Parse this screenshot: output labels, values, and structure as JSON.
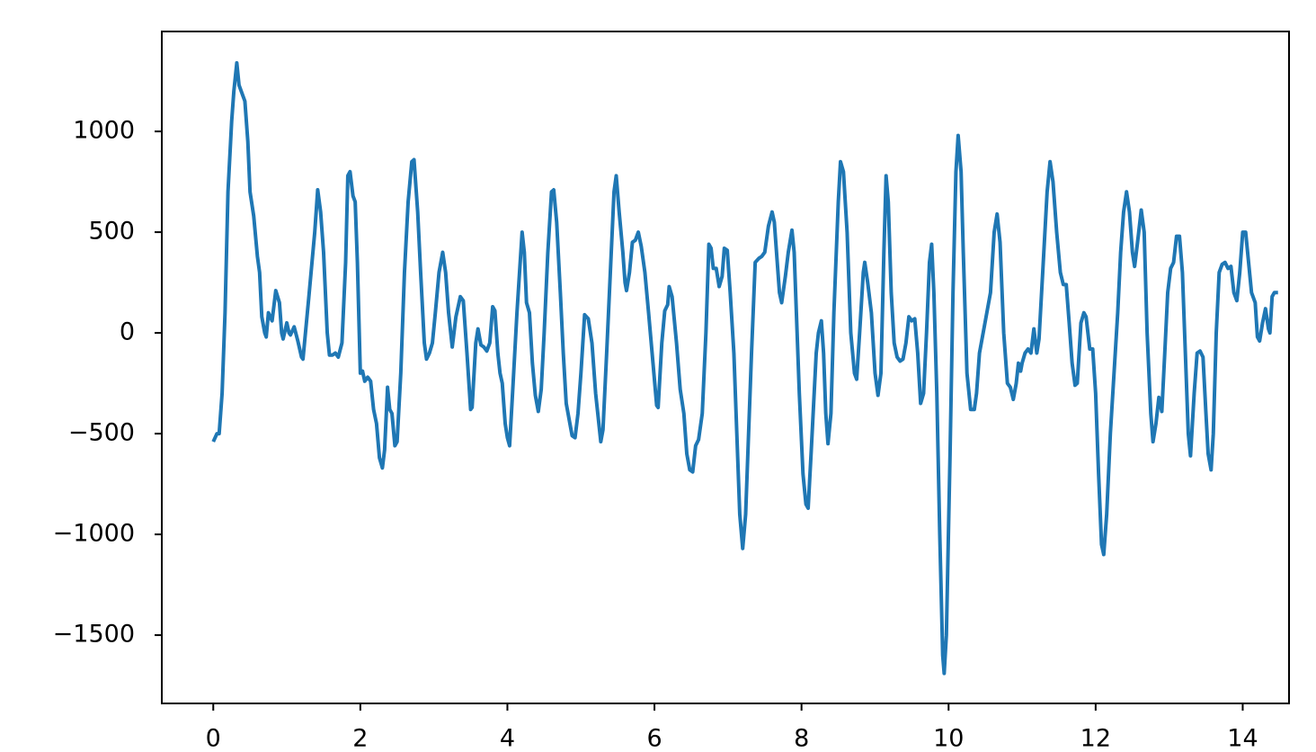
{
  "chart_data": {
    "type": "line",
    "x": [
      0,
      0.05,
      0.08,
      0.12,
      0.16,
      0.2,
      0.25,
      0.28,
      0.32,
      0.35,
      0.4,
      0.43,
      0.47,
      0.5,
      0.55,
      0.6,
      0.63,
      0.66,
      0.7,
      0.72,
      0.75,
      0.8,
      0.85,
      0.9,
      0.93,
      0.95,
      1.0,
      1.03,
      1.05,
      1.1,
      1.15,
      1.2,
      1.22,
      1.3,
      1.38,
      1.42,
      1.46,
      1.5,
      1.55,
      1.58,
      1.62,
      1.66,
      1.7,
      1.75,
      1.8,
      1.83,
      1.86,
      1.9,
      1.93,
      1.96,
      2.0,
      2.03,
      2.06,
      2.1,
      2.14,
      2.18,
      2.22,
      2.26,
      2.3,
      2.33,
      2.37,
      2.4,
      2.43,
      2.47,
      2.5,
      2.55,
      2.6,
      2.65,
      2.7,
      2.73,
      2.78,
      2.82,
      2.87,
      2.9,
      2.94,
      2.98,
      3.02,
      3.07,
      3.12,
      3.16,
      3.2,
      3.25,
      3.3,
      3.36,
      3.4,
      3.45,
      3.5,
      3.52,
      3.57,
      3.6,
      3.64,
      3.68,
      3.72,
      3.76,
      3.8,
      3.83,
      3.87,
      3.9,
      3.93,
      3.97,
      4.0,
      4.03,
      4.07,
      4.13,
      4.2,
      4.23,
      4.26,
      4.3,
      4.34,
      4.38,
      4.42,
      4.46,
      4.5,
      4.55,
      4.6,
      4.63,
      4.67,
      4.72,
      4.76,
      4.8,
      4.85,
      4.88,
      4.92,
      4.96,
      5.0,
      5.05,
      5.1,
      5.15,
      5.2,
      5.27,
      5.3,
      5.35,
      5.4,
      5.45,
      5.48,
      5.52,
      5.57,
      5.6,
      5.62,
      5.66,
      5.7,
      5.74,
      5.78,
      5.82,
      5.87,
      5.92,
      5.98,
      6.03,
      6.05,
      6.1,
      6.14,
      6.18,
      6.2,
      6.24,
      6.3,
      6.35,
      6.4,
      6.44,
      6.48,
      6.52,
      6.56,
      6.6,
      6.65,
      6.7,
      6.74,
      6.77,
      6.8,
      6.84,
      6.88,
      6.92,
      6.95,
      6.99,
      7.03,
      7.08,
      7.12,
      7.16,
      7.2,
      7.24,
      7.28,
      7.32,
      7.37,
      7.42,
      7.46,
      7.5,
      7.55,
      7.6,
      7.63,
      7.66,
      7.7,
      7.73,
      7.78,
      7.82,
      7.87,
      7.9,
      7.93,
      7.97,
      8.02,
      8.06,
      8.09,
      8.13,
      8.2,
      8.23,
      8.27,
      8.3,
      8.33,
      8.36,
      8.4,
      8.44,
      8.5,
      8.53,
      8.57,
      8.62,
      8.67,
      8.72,
      8.75,
      8.79,
      8.84,
      8.86,
      8.9,
      8.95,
      9.0,
      9.04,
      9.08,
      9.12,
      9.15,
      9.18,
      9.22,
      9.26,
      9.3,
      9.34,
      9.38,
      9.42,
      9.46,
      9.5,
      9.54,
      9.58,
      9.62,
      9.66,
      9.7,
      9.74,
      9.77,
      9.8,
      9.84,
      9.88,
      9.92,
      9.94,
      9.97,
      10.02,
      10.06,
      10.1,
      10.13,
      10.17,
      10.2,
      10.25,
      10.3,
      10.35,
      10.38,
      10.42,
      10.47,
      10.52,
      10.57,
      10.62,
      10.66,
      10.7,
      10.75,
      10.8,
      10.84,
      10.88,
      10.92,
      10.95,
      10.98,
      11.0,
      11.04,
      11.08,
      11.12,
      11.16,
      11.2,
      11.23,
      11.28,
      11.34,
      11.38,
      11.42,
      11.47,
      11.52,
      11.56,
      11.6,
      11.64,
      11.68,
      11.72,
      11.75,
      11.8,
      11.84,
      11.87,
      11.92,
      11.96,
      12.0,
      12.04,
      12.08,
      12.11,
      12.15,
      12.2,
      12.25,
      12.3,
      12.34,
      12.38,
      12.42,
      12.46,
      12.5,
      12.53,
      12.57,
      12.62,
      12.66,
      12.7,
      12.75,
      12.78,
      12.82,
      12.86,
      12.9,
      12.94,
      12.98,
      13.02,
      13.06,
      13.1,
      13.14,
      13.18,
      13.22,
      13.26,
      13.29,
      13.34,
      13.38,
      13.42,
      13.46,
      13.5,
      13.53,
      13.57,
      13.6,
      13.64,
      13.68,
      13.72,
      13.76,
      13.8,
      13.84,
      13.88,
      13.92,
      13.96,
      14.0,
      14.04,
      14.08,
      14.12,
      14.17,
      14.2,
      14.23,
      14.27,
      14.31,
      14.35,
      14.37,
      14.4,
      14.43,
      14.48
    ],
    "series": [
      {
        "color": "#1f77b4",
        "values": [
          -540,
          -500,
          -500,
          -300,
          100,
          700,
          1050,
          1200,
          1340,
          1230,
          1180,
          1150,
          950,
          700,
          580,
          380,
          300,
          80,
          0,
          -20,
          100,
          60,
          210,
          150,
          0,
          -30,
          50,
          0,
          -10,
          30,
          -40,
          -120,
          -130,
          180,
          500,
          710,
          600,
          400,
          0,
          -110,
          -110,
          -100,
          -120,
          -50,
          350,
          780,
          800,
          680,
          650,
          350,
          -200,
          -190,
          -240,
          -220,
          -240,
          -380,
          -450,
          -620,
          -670,
          -580,
          -270,
          -380,
          -400,
          -560,
          -540,
          -200,
          300,
          650,
          850,
          860,
          600,
          300,
          -50,
          -130,
          -100,
          -50,
          100,
          300,
          400,
          300,
          100,
          -70,
          80,
          180,
          160,
          -100,
          -380,
          -370,
          -50,
          20,
          -60,
          -70,
          -90,
          -50,
          130,
          110,
          -100,
          -200,
          -250,
          -450,
          -520,
          -560,
          -300,
          100,
          500,
          400,
          150,
          100,
          -150,
          -310,
          -390,
          -280,
          0,
          400,
          700,
          710,
          550,
          200,
          -100,
          -350,
          -450,
          -510,
          -520,
          -400,
          -200,
          90,
          70,
          -50,
          -300,
          -540,
          -480,
          -100,
          300,
          700,
          780,
          600,
          400,
          250,
          210,
          300,
          450,
          460,
          500,
          430,
          300,
          100,
          -150,
          -360,
          -370,
          -50,
          110,
          140,
          230,
          180,
          -50,
          -280,
          -400,
          -600,
          -680,
          -690,
          -560,
          -530,
          -400,
          0,
          440,
          420,
          320,
          320,
          230,
          280,
          420,
          410,
          200,
          -100,
          -500,
          -900,
          -1070,
          -900,
          -500,
          -100,
          350,
          370,
          380,
          400,
          530,
          600,
          550,
          400,
          200,
          150,
          280,
          400,
          510,
          400,
          100,
          -300,
          -700,
          -850,
          -870,
          -600,
          -100,
          0,
          60,
          -100,
          -400,
          -550,
          -400,
          100,
          650,
          850,
          800,
          500,
          0,
          -200,
          -230,
          0,
          300,
          350,
          250,
          100,
          -200,
          -310,
          -200,
          400,
          780,
          650,
          200,
          -50,
          -120,
          -140,
          -130,
          -50,
          80,
          60,
          70,
          -100,
          -350,
          -300,
          0,
          350,
          440,
          200,
          -300,
          -1000,
          -1600,
          -1690,
          -1500,
          -600,
          200,
          800,
          980,
          800,
          400,
          -200,
          -380,
          -380,
          -300,
          -100,
          0,
          100,
          200,
          500,
          590,
          450,
          0,
          -250,
          -270,
          -330,
          -250,
          -150,
          -190,
          -150,
          -100,
          -80,
          -100,
          20,
          -100,
          -30,
          300,
          700,
          850,
          750,
          500,
          300,
          240,
          240,
          50,
          -150,
          -260,
          -250,
          50,
          100,
          80,
          -80,
          -80,
          -300,
          -700,
          -1050,
          -1100,
          -900,
          -500,
          -200,
          100,
          400,
          600,
          700,
          600,
          400,
          330,
          450,
          610,
          500,
          0,
          -400,
          -540,
          -450,
          -320,
          -390,
          -100,
          200,
          320,
          350,
          480,
          480,
          300,
          -100,
          -500,
          -610,
          -300,
          -100,
          -90,
          -120,
          -400,
          -600,
          -680,
          -500,
          0,
          300,
          340,
          350,
          320,
          330,
          200,
          160,
          300,
          500,
          500,
          350,
          200,
          150,
          -20,
          -40,
          50,
          120,
          20,
          0,
          180,
          200,
          200
        ]
      }
    ],
    "xlim": [
      -0.7,
      14.63
    ],
    "ylim": [
      -1839,
      1496
    ],
    "xticks": [
      0,
      2,
      4,
      6,
      8,
      10,
      12,
      14
    ],
    "yticks": [
      {
        "value": -1500,
        "label": "−1500"
      },
      {
        "value": -1000,
        "label": "−1000"
      },
      {
        "value": -500,
        "label": "−500"
      },
      0,
      500,
      1000
    ]
  }
}
